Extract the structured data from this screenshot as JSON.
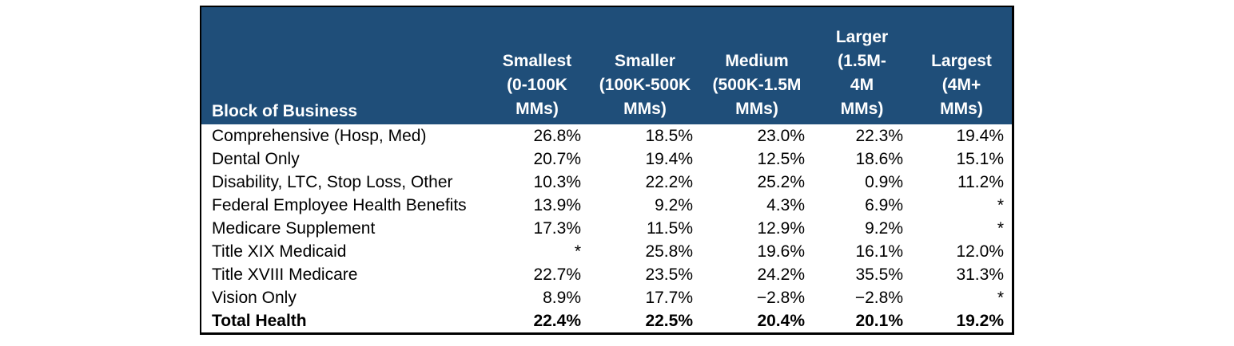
{
  "table": {
    "header": {
      "row_label": "Block of Business",
      "columns": [
        {
          "name": "smallest",
          "lines": [
            "Smallest",
            "(0-100K",
            "MMs)"
          ]
        },
        {
          "name": "smaller",
          "lines": [
            "Smaller",
            "(100K-500K",
            "MMs)"
          ]
        },
        {
          "name": "medium",
          "lines": [
            "Medium",
            "(500K-1.5M",
            "MMs)"
          ]
        },
        {
          "name": "larger",
          "lines": [
            "Larger",
            "(1.5M-",
            "4M",
            "MMs)"
          ]
        },
        {
          "name": "largest",
          "lines": [
            "Largest",
            "(4M+",
            "MMs)"
          ]
        }
      ]
    },
    "rows": [
      {
        "label": "Comprehensive (Hosp, Med)",
        "values": [
          "26.8%",
          "18.5%",
          "23.0%",
          "22.3%",
          "19.4%"
        ]
      },
      {
        "label": "Dental Only",
        "values": [
          "20.7%",
          "19.4%",
          "12.5%",
          "18.6%",
          "15.1%"
        ]
      },
      {
        "label": "Disability, LTC, Stop Loss, Other",
        "values": [
          "10.3%",
          "22.2%",
          "25.2%",
          "0.9%",
          "11.2%"
        ]
      },
      {
        "label": "Federal Employee Health Benefits",
        "values": [
          "13.9%",
          "9.2%",
          "4.3%",
          "6.9%",
          "*"
        ]
      },
      {
        "label": "Medicare Supplement",
        "values": [
          "17.3%",
          "11.5%",
          "12.9%",
          "9.2%",
          "*"
        ]
      },
      {
        "label": "Title XIX Medicaid",
        "values": [
          "*",
          "25.8%",
          "19.6%",
          "16.1%",
          "12.0%"
        ]
      },
      {
        "label": "Title XVIII Medicare",
        "values": [
          "22.7%",
          "23.5%",
          "24.2%",
          "35.5%",
          "31.3%"
        ]
      },
      {
        "label": "Vision Only",
        "values": [
          "8.9%",
          "17.7%",
          "−2.8%",
          "−2.8%",
          "*"
        ]
      },
      {
        "label": "Total Health",
        "values": [
          "22.4%",
          "22.5%",
          "20.4%",
          "20.1%",
          "19.2%"
        ],
        "total": true
      }
    ],
    "colors": {
      "header_bg": "#1F4E79",
      "header_text": "#FFFFFF",
      "body_text": "#000000",
      "border": "#000000",
      "body_bg": "#FFFFFF"
    }
  }
}
